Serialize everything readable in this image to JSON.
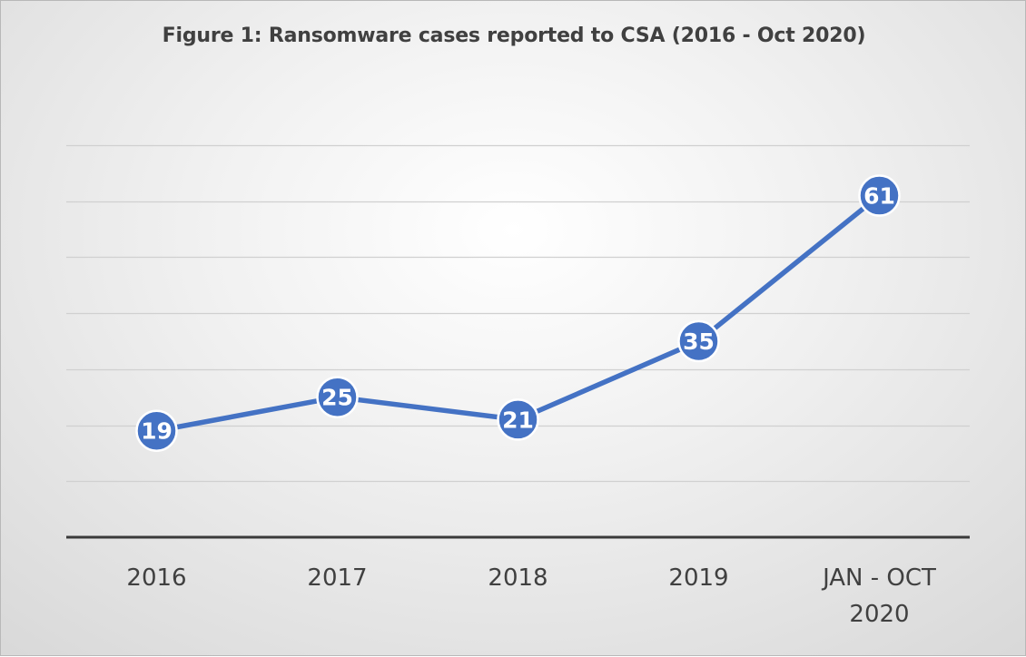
{
  "chart_data": {
    "type": "line",
    "title": "Figure 1: Ransomware cases reported to CSA (2016 - Oct 2020)",
    "categories": [
      "2016",
      "2017",
      "2018",
      "2019",
      "JAN - OCT 2020"
    ],
    "category_lines": [
      [
        "2016"
      ],
      [
        "2017"
      ],
      [
        "2018"
      ],
      [
        "2019"
      ],
      [
        "JAN - OCT",
        "2020"
      ]
    ],
    "series": [
      {
        "values": [
          19,
          25,
          21,
          35,
          61
        ]
      }
    ],
    "ylim": [
      0,
      70
    ],
    "gridline_step": 10,
    "grid": true,
    "y_tick_labels": false,
    "data_labels": true,
    "colors": {
      "line": "#4472C4",
      "marker": "#4472C4",
      "data_label": "#FFFFFF",
      "gridline": "#d0d0d0",
      "axis": "#3a3a3a",
      "tick_label": "#404040"
    }
  }
}
